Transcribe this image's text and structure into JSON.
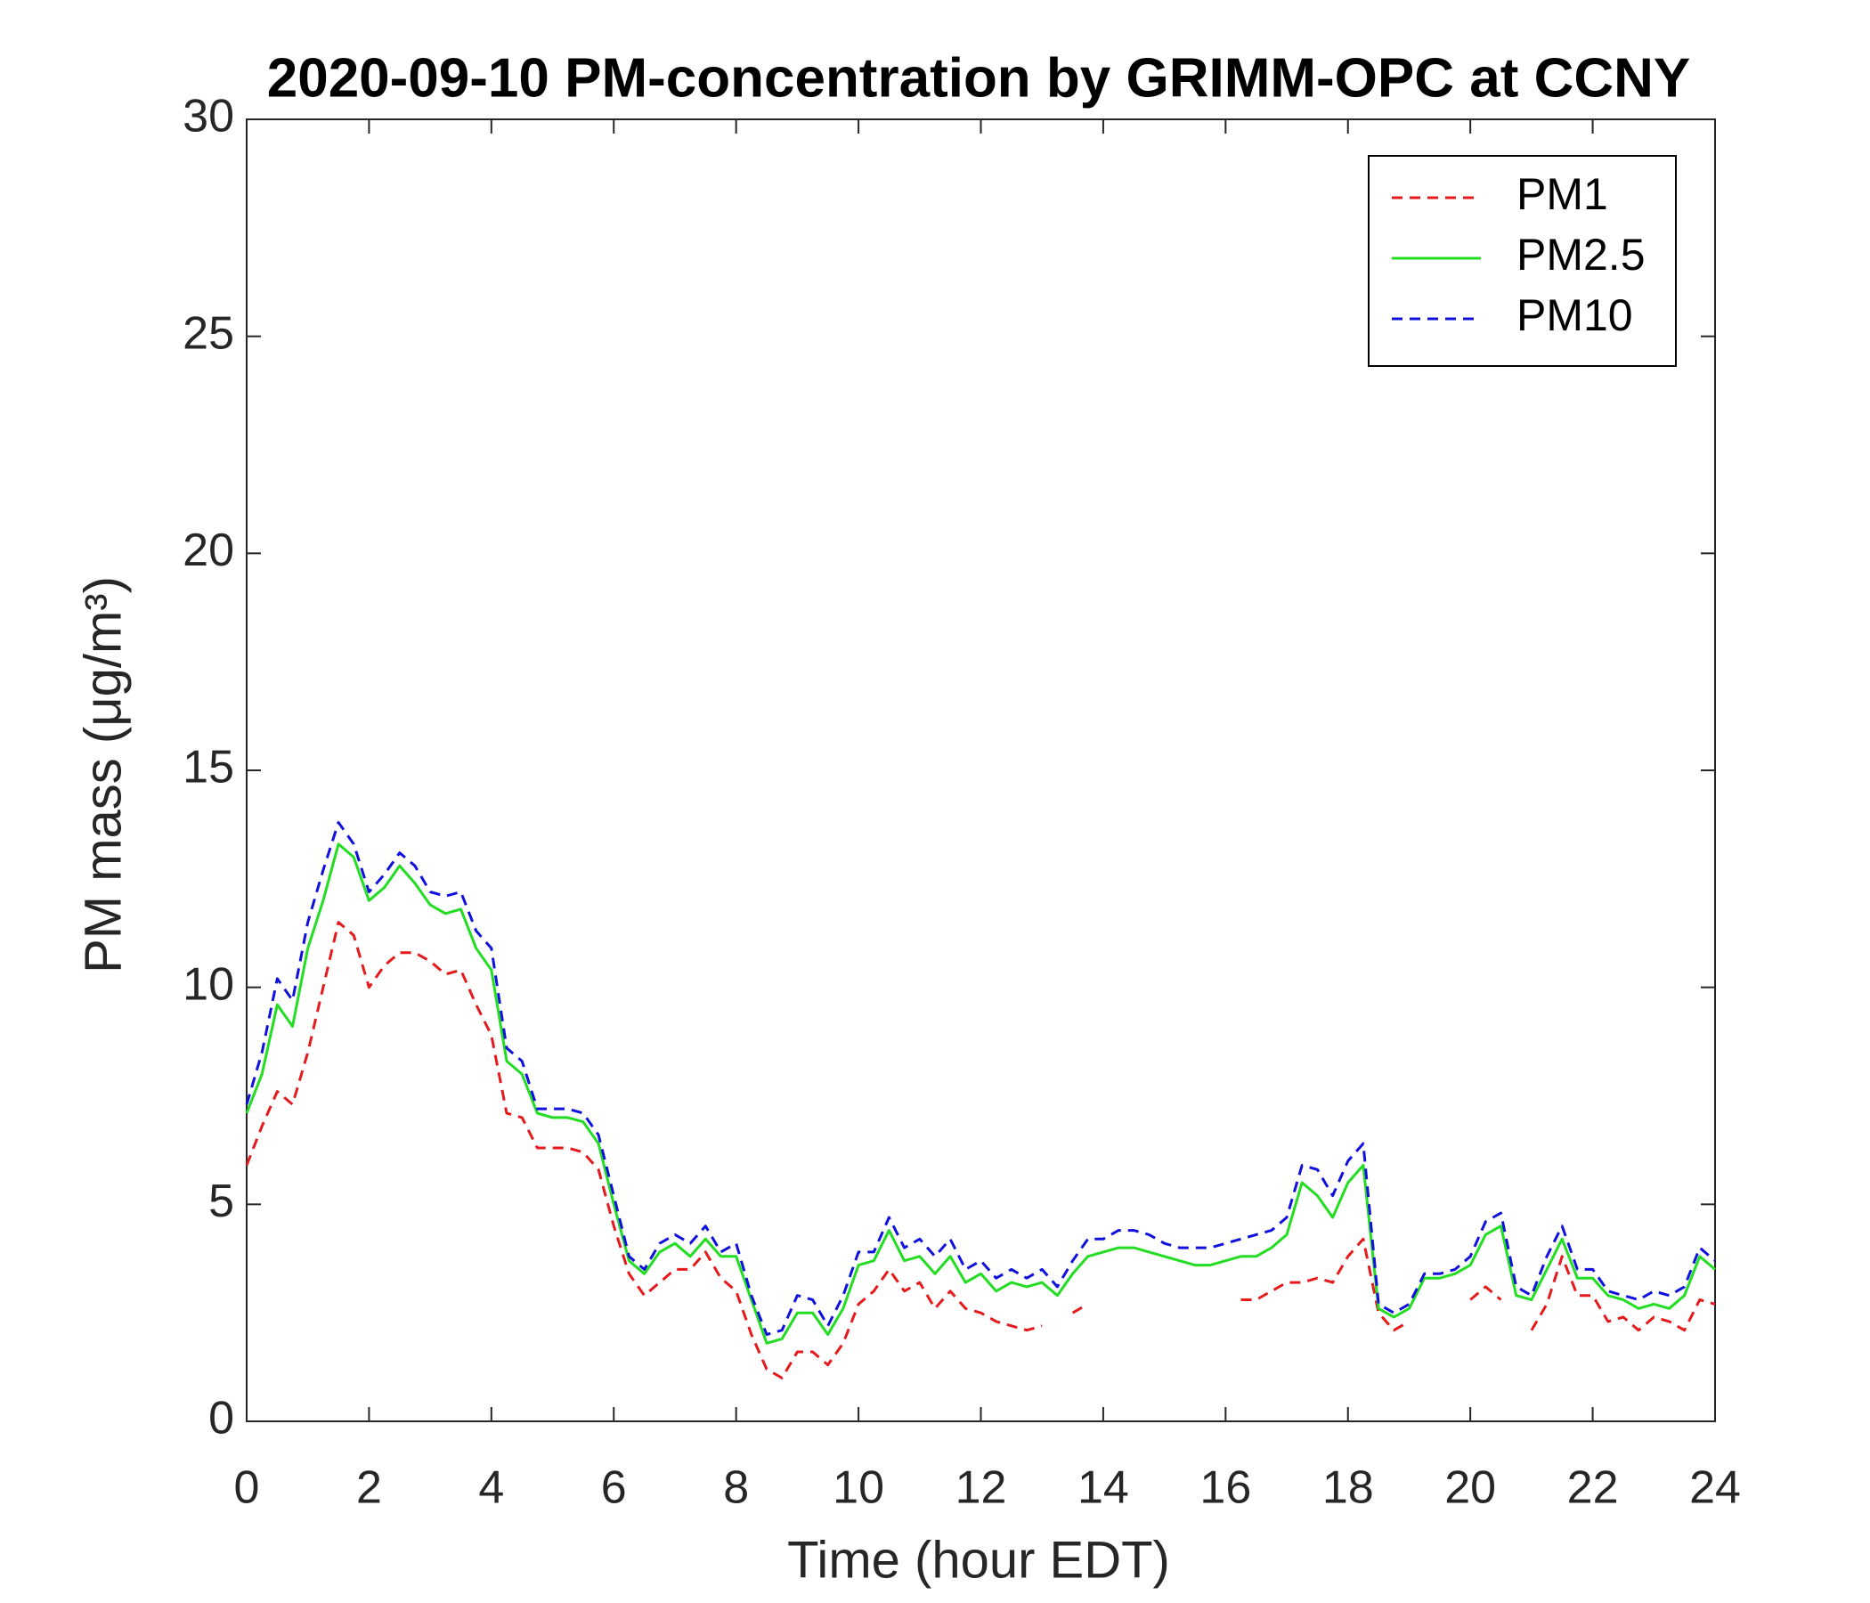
{
  "chart_data": {
    "type": "line",
    "title": "2020-09-10 PM-concentration by GRIMM-OPC at CCNY",
    "xlabel": "Time (hour EDT)",
    "ylabel": "PM mass (μg/m³)",
    "xlim": [
      0,
      24
    ],
    "ylim": [
      0,
      30
    ],
    "xticks": [
      0,
      2,
      4,
      6,
      8,
      10,
      12,
      14,
      16,
      18,
      20,
      22,
      24
    ],
    "yticks": [
      0,
      5,
      10,
      15,
      20,
      25,
      30
    ],
    "legend": "upper right",
    "x": [
      0,
      0.25,
      0.5,
      0.75,
      1,
      1.25,
      1.5,
      1.75,
      2,
      2.25,
      2.5,
      2.75,
      3,
      3.25,
      3.5,
      3.75,
      4,
      4.25,
      4.5,
      4.75,
      5,
      5.25,
      5.5,
      5.75,
      6,
      6.25,
      6.5,
      6.75,
      7,
      7.25,
      7.5,
      7.75,
      8,
      8.25,
      8.5,
      8.75,
      9,
      9.25,
      9.5,
      9.75,
      10,
      10.25,
      10.5,
      10.75,
      11,
      11.25,
      11.5,
      11.75,
      12,
      12.25,
      12.5,
      12.75,
      13,
      13.25,
      13.5,
      13.75,
      14,
      14.25,
      14.5,
      14.75,
      15,
      15.25,
      15.5,
      15.75,
      16,
      16.25,
      16.5,
      16.75,
      17,
      17.25,
      17.5,
      17.75,
      18,
      18.25,
      18.5,
      18.75,
      19,
      19.25,
      19.5,
      19.75,
      20,
      20.25,
      20.5,
      20.75,
      21,
      21.25,
      21.5,
      21.75,
      22,
      22.25,
      22.5,
      22.75,
      23,
      23.25,
      23.5,
      23.75,
      24
    ],
    "series": [
      {
        "name": "PM1",
        "color": "#e41a1c",
        "dash": true,
        "values": [
          5.9,
          6.8,
          7.6,
          7.3,
          8.5,
          10.0,
          11.5,
          11.2,
          10.0,
          10.5,
          10.8,
          10.8,
          10.6,
          10.3,
          10.4,
          9.6,
          8.9,
          7.1,
          7.0,
          6.3,
          6.3,
          6.3,
          6.2,
          5.8,
          4.5,
          3.4,
          2.9,
          3.2,
          3.5,
          3.5,
          3.9,
          3.3,
          3.0,
          2.0,
          1.2,
          1.0,
          1.6,
          1.6,
          1.3,
          1.8,
          2.7,
          3.0,
          3.5,
          3.0,
          3.2,
          2.6,
          3.0,
          2.6,
          2.5,
          2.3,
          2.2,
          2.1,
          2.2,
          null,
          2.5,
          2.7,
          null,
          null,
          null,
          null,
          null,
          null,
          null,
          null,
          null,
          2.8,
          2.8,
          3.0,
          3.2,
          3.2,
          3.3,
          3.2,
          3.8,
          4.2,
          2.5,
          2.1,
          2.3,
          null,
          null,
          null,
          2.8,
          3.1,
          2.8,
          null,
          2.1,
          2.7,
          3.8,
          2.9,
          2.9,
          2.3,
          2.4,
          2.1,
          2.4,
          2.3,
          2.1,
          2.8,
          2.7
        ]
      },
      {
        "name": "PM2.5",
        "color": "#22dd22",
        "dash": false,
        "values": [
          7.1,
          8.0,
          9.6,
          9.1,
          10.9,
          12.0,
          13.3,
          13.0,
          12.0,
          12.3,
          12.8,
          12.4,
          11.9,
          11.7,
          11.8,
          10.9,
          10.4,
          8.3,
          8.0,
          7.1,
          7.0,
          7.0,
          6.9,
          6.4,
          5.0,
          3.7,
          3.4,
          3.9,
          4.1,
          3.8,
          4.2,
          3.8,
          3.8,
          2.8,
          1.8,
          1.9,
          2.5,
          2.5,
          2.0,
          2.6,
          3.6,
          3.7,
          4.4,
          3.7,
          3.8,
          3.4,
          3.8,
          3.2,
          3.4,
          3.0,
          3.2,
          3.1,
          3.2,
          2.9,
          3.4,
          3.8,
          3.9,
          4.0,
          4.0,
          3.9,
          3.8,
          3.7,
          3.6,
          3.6,
          3.7,
          3.8,
          3.8,
          4.0,
          4.3,
          5.5,
          5.2,
          4.7,
          5.5,
          5.9,
          2.6,
          2.4,
          2.6,
          3.3,
          3.3,
          3.4,
          3.6,
          4.3,
          4.5,
          2.9,
          2.8,
          3.5,
          4.2,
          3.3,
          3.3,
          2.9,
          2.8,
          2.6,
          2.7,
          2.6,
          2.9,
          3.8,
          3.5
        ]
      },
      {
        "name": "PM10",
        "color": "#1010dd",
        "dash": true,
        "values": [
          7.3,
          8.5,
          10.2,
          9.7,
          11.5,
          12.7,
          13.8,
          13.3,
          12.2,
          12.6,
          13.1,
          12.8,
          12.2,
          12.1,
          12.2,
          11.3,
          10.9,
          8.6,
          8.3,
          7.2,
          7.2,
          7.2,
          7.1,
          6.6,
          5.2,
          3.8,
          3.5,
          4.1,
          4.3,
          4.1,
          4.5,
          3.9,
          4.1,
          2.9,
          2.0,
          2.1,
          2.9,
          2.8,
          2.2,
          2.9,
          3.9,
          3.9,
          4.7,
          4.0,
          4.2,
          3.8,
          4.2,
          3.5,
          3.7,
          3.3,
          3.5,
          3.3,
          3.5,
          3.1,
          3.7,
          4.2,
          4.2,
          4.4,
          4.4,
          4.3,
          4.1,
          4.0,
          4.0,
          4.0,
          4.1,
          4.2,
          4.3,
          4.4,
          4.7,
          5.9,
          5.8,
          5.2,
          6.0,
          6.4,
          2.7,
          2.5,
          2.7,
          3.4,
          3.4,
          3.5,
          3.8,
          4.6,
          4.8,
          3.1,
          2.9,
          3.8,
          4.5,
          3.5,
          3.5,
          3.0,
          2.9,
          2.8,
          3.0,
          2.9,
          3.1,
          4.0,
          3.7
        ]
      }
    ]
  }
}
